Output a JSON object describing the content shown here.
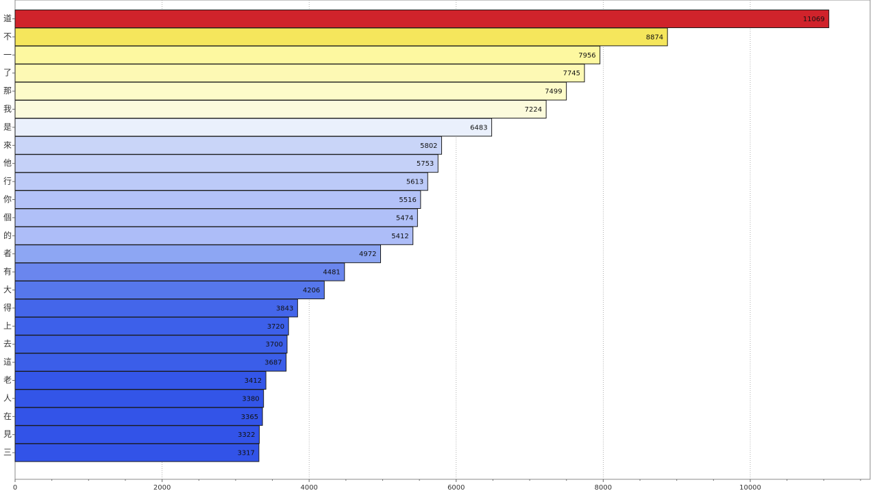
{
  "chart_data": {
    "type": "bar",
    "orientation": "horizontal",
    "title": "",
    "xlabel": "",
    "ylabel": "",
    "categories": [
      "道",
      "不",
      "一",
      "了",
      "那",
      "我",
      "是",
      "來",
      "他",
      "行",
      "你",
      "個",
      "的",
      "者",
      "有",
      "大",
      "得",
      "上",
      "去",
      "這",
      "老",
      "人",
      "在",
      "見",
      "三"
    ],
    "values": [
      11069,
      8874,
      7956,
      7745,
      7499,
      7224,
      6483,
      5802,
      5753,
      5613,
      5516,
      5474,
      5412,
      4972,
      4481,
      4206,
      3843,
      3720,
      3700,
      3687,
      3412,
      3380,
      3365,
      3322,
      3317
    ],
    "bar_colors": [
      "#d0232b",
      "#f5e65c",
      "#fdf8a0",
      "#fdf9b4",
      "#fdfbc9",
      "#fcfbdc",
      "#eaf0fc",
      "#c9d5f8",
      "#c5d1f8",
      "#bccaf8",
      "#b3c2f8",
      "#b0c0f8",
      "#adbdf8",
      "#8da6f3",
      "#6a86ee",
      "#5677ec",
      "#4466ea",
      "#3d60ea",
      "#3c5fe9",
      "#3b5ee9",
      "#3456e8",
      "#3355e8",
      "#3354e8",
      "#3253e8",
      "#3253e8"
    ],
    "xlim": [
      0,
      11700
    ],
    "xticks": [
      0,
      2000,
      4000,
      6000,
      8000,
      10000
    ],
    "grid": "vertical-dotted",
    "data_labels": true,
    "legend": "none"
  }
}
